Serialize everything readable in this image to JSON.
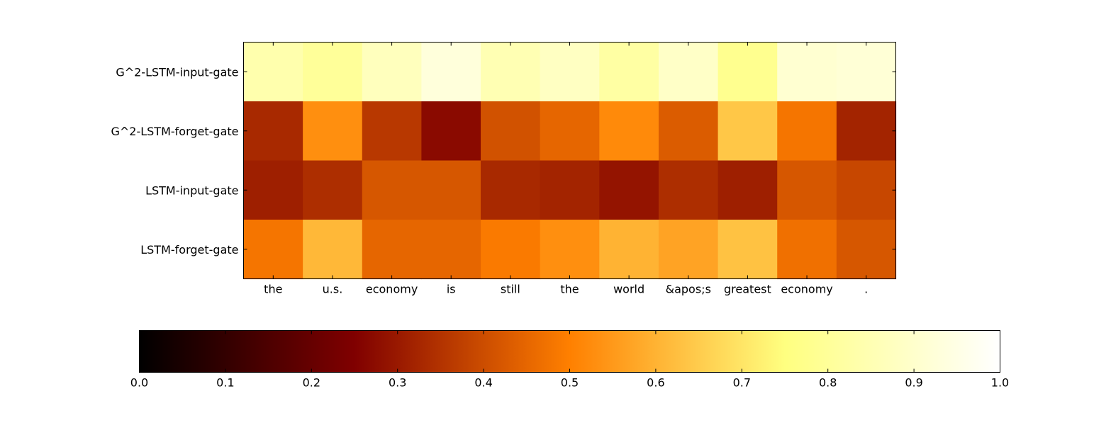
{
  "chart_data": {
    "type": "heatmap",
    "title": "",
    "xlabel": "",
    "ylabel": "",
    "x_categories": [
      "the",
      "u.s.",
      "economy",
      "is",
      "still",
      "the",
      "world",
      "&apos;s",
      "greatest",
      "economy",
      "."
    ],
    "y_categories": [
      "G^2-LSTM-input-gate",
      "G^2-LSTM-forget-gate",
      "LSTM-input-gate",
      "LSTM-forget-gate"
    ],
    "values": [
      [
        0.84,
        0.8,
        0.87,
        0.93,
        0.85,
        0.88,
        0.82,
        0.89,
        0.78,
        0.91,
        0.92
      ],
      [
        0.33,
        0.53,
        0.36,
        0.27,
        0.41,
        0.45,
        0.52,
        0.43,
        0.64,
        0.48,
        0.32
      ],
      [
        0.31,
        0.34,
        0.42,
        0.42,
        0.33,
        0.32,
        0.29,
        0.34,
        0.31,
        0.42,
        0.39
      ],
      [
        0.48,
        0.61,
        0.45,
        0.45,
        0.49,
        0.53,
        0.6,
        0.57,
        0.63,
        0.47,
        0.42
      ]
    ],
    "colormap": "afmhot",
    "vmin": 0.0,
    "vmax": 1.0,
    "colorbar_ticks": [
      "0.0",
      "0.1",
      "0.2",
      "0.3",
      "0.4",
      "0.5",
      "0.6",
      "0.7",
      "0.8",
      "0.9",
      "1.0"
    ],
    "colorbar_orientation": "horizontal",
    "colorbar_placement": "bottom",
    "grid": false
  }
}
